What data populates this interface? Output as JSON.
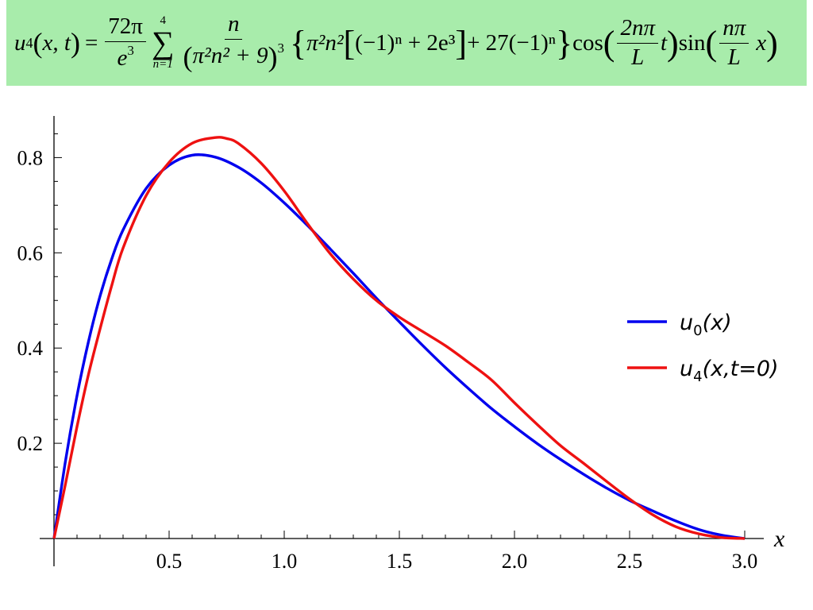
{
  "formula": {
    "lhs_fn": "u",
    "lhs_sub": "4",
    "lhs_args": "x, t",
    "eq": "=",
    "coef_num": "72π",
    "coef_den_base": "e",
    "coef_den_exp": "3",
    "sum_upper": "4",
    "sum_sym": "∑",
    "sum_lower": "n=1",
    "frac_num": "n",
    "frac_den_inner": "π²n² + 9",
    "frac_den_exp": "3",
    "brace_term_1": "π²n²",
    "bracket_term": "(−1)ⁿ + 2e³",
    "plus_term": "+ 27(−1)ⁿ",
    "cos_label": "cos",
    "cos_arg_num": "2nπ",
    "cos_arg_den": "L",
    "cos_arg_var": "t",
    "sin_label": "sin",
    "sin_arg_num": "nπ",
    "sin_arg_den": "L",
    "sin_arg_var": "x"
  },
  "chart_data": {
    "type": "line",
    "xlabel": "x",
    "ylabel": "",
    "xlim": [
      0,
      3.0
    ],
    "ylim": [
      0,
      0.88
    ],
    "grid": false,
    "legend_position": "right",
    "x_ticks": [
      {
        "value": 0.5,
        "label": "0.5"
      },
      {
        "value": 1.0,
        "label": "1.0"
      },
      {
        "value": 1.5,
        "label": "1.5"
      },
      {
        "value": 2.0,
        "label": "2.0"
      },
      {
        "value": 2.5,
        "label": "2.5"
      },
      {
        "value": 3.0,
        "label": "3.0"
      }
    ],
    "y_ticks": [
      {
        "value": 0.2,
        "label": "0.2"
      },
      {
        "value": 0.4,
        "label": "0.4"
      },
      {
        "value": 0.6,
        "label": "0.6"
      },
      {
        "value": 0.8,
        "label": "0.8"
      }
    ],
    "series": [
      {
        "name": "u0(x)",
        "legend_base": "u",
        "legend_sub": "0",
        "legend_args": "(x)",
        "color": "#0000ee",
        "x": [
          0,
          0.05,
          0.1,
          0.15,
          0.2,
          0.25,
          0.3,
          0.4,
          0.5,
          0.6,
          0.7,
          0.8,
          0.9,
          1.0,
          1.1,
          1.2,
          1.3,
          1.4,
          1.5,
          1.6,
          1.7,
          1.8,
          1.9,
          2.0,
          2.1,
          2.2,
          2.3,
          2.4,
          2.5,
          2.6,
          2.7,
          2.8,
          2.9,
          3.0
        ],
        "y": [
          0,
          0.163,
          0.3,
          0.414,
          0.509,
          0.586,
          0.648,
          0.735,
          0.784,
          0.805,
          0.801,
          0.78,
          0.747,
          0.705,
          0.658,
          0.608,
          0.557,
          0.505,
          0.455,
          0.406,
          0.359,
          0.315,
          0.273,
          0.235,
          0.199,
          0.166,
          0.135,
          0.106,
          0.08,
          0.058,
          0.037,
          0.019,
          0.007,
          0
        ]
      },
      {
        "name": "u4(x,t=0)",
        "legend_base": "u",
        "legend_sub": "4",
        "legend_args": "(x,t=0)",
        "color": "#ee1111",
        "x": [
          0,
          0.05,
          0.1,
          0.15,
          0.2,
          0.25,
          0.3,
          0.4,
          0.5,
          0.6,
          0.7,
          0.75,
          0.8,
          0.9,
          1.0,
          1.1,
          1.2,
          1.3,
          1.4,
          1.5,
          1.6,
          1.7,
          1.8,
          1.9,
          2.0,
          2.1,
          2.2,
          2.3,
          2.4,
          2.5,
          2.6,
          2.7,
          2.8,
          2.9,
          3.0
        ],
        "y": [
          0,
          0.115,
          0.235,
          0.345,
          0.44,
          0.53,
          0.61,
          0.72,
          0.79,
          0.83,
          0.842,
          0.84,
          0.83,
          0.788,
          0.73,
          0.662,
          0.598,
          0.545,
          0.5,
          0.465,
          0.435,
          0.405,
          0.37,
          0.333,
          0.285,
          0.239,
          0.195,
          0.158,
          0.12,
          0.083,
          0.05,
          0.025,
          0.01,
          0.002,
          0
        ]
      }
    ]
  }
}
